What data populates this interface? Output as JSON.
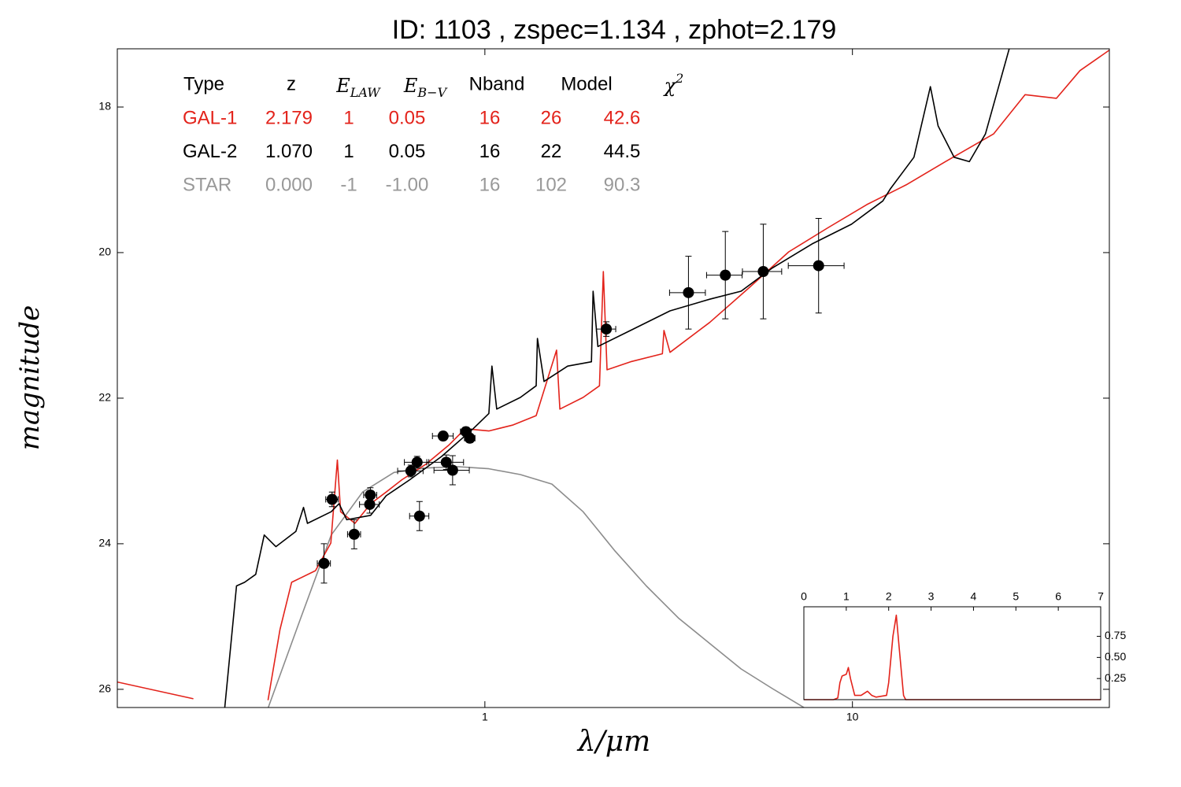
{
  "chart_data": [
    {
      "type": "scatter",
      "title": "ID:  1103  , zspec=1.134 , zphot=2.179",
      "xlabel": "λ/μm",
      "ylabel": "magnitude",
      "xscale": "log",
      "xlim": [
        0.1,
        50
      ],
      "xticks": [
        1,
        10
      ],
      "ylim": [
        26.25,
        17.2
      ],
      "yticks": [
        18,
        20,
        22,
        24,
        26
      ],
      "table": {
        "headers": [
          "Type",
          "z",
          {
            "text": "E",
            "sub": "LAW"
          },
          {
            "text": "E",
            "sub": "B−V"
          },
          "Nband",
          "Model",
          {
            "text": "χ",
            "sup": "2"
          }
        ],
        "rows": [
          {
            "color": "#e3231b",
            "cells": [
              "GAL-1",
              "2.179",
              "1",
              "0.05",
              "16",
              "26",
              "42.6"
            ]
          },
          {
            "color": "#000000",
            "cells": [
              "GAL-2",
              "1.070",
              "1",
              "0.05",
              "16",
              "22",
              "44.5"
            ]
          },
          {
            "color": "#999999",
            "cells": [
              "STAR",
              "0.000",
              "-1",
              "-1.00",
              "16",
              "102",
              "90.3"
            ]
          }
        ]
      },
      "lines": [
        {
          "color": "#8c8c8c",
          "x": [
            0.257,
            0.313,
            0.382,
            0.465,
            0.566,
            0.69,
            0.841,
            1.025,
            1.249,
            1.522,
            1.85,
            2.26,
            2.75,
            3.36,
            4.09,
            4.98,
            6.06,
            7.38
          ],
          "values": [
            26.26,
            25.07,
            23.88,
            23.29,
            23.02,
            22.96,
            22.94,
            22.97,
            23.05,
            23.18,
            23.56,
            24.1,
            24.58,
            25.02,
            25.37,
            25.72,
            25.99,
            26.25
          ]
        },
        {
          "color": "#e3231b",
          "x": [
            0.1,
            0.161,
            0.2,
            0.257,
            0.277,
            0.298,
            0.346,
            0.381,
            0.397,
            0.405,
            0.443,
            0.489,
            0.539,
            0.595,
            0.69,
            0.8,
            0.884,
            1.025,
            1.189,
            1.379,
            1.567,
            1.6,
            1.85,
            2.05,
            2.1,
            2.15,
            2.49,
            3.04,
            3.07,
            3.19,
            4.09,
            5.24,
            6.71,
            8.57,
            10.95,
            14.0,
            17.9,
            24.2,
            29.5,
            35.9,
            41.6,
            50.6
          ],
          "values": [
            25.9,
            26.13,
            null,
            26.15,
            25.18,
            24.53,
            24.37,
            23.99,
            22.85,
            23.56,
            23.72,
            23.45,
            23.29,
            23.12,
            22.91,
            22.64,
            22.42,
            22.45,
            22.37,
            22.24,
            21.34,
            22.15,
            21.99,
            21.83,
            20.26,
            21.61,
            21.5,
            21.39,
            21.07,
            21.37,
            20.96,
            20.48,
            19.99,
            19.66,
            19.34,
            19.07,
            18.75,
            18.37,
            17.83,
            17.88,
            17.5,
            17.2
          ]
        },
        {
          "color": "#000000",
          "x": [
            0.196,
            0.211,
            0.222,
            0.238,
            0.251,
            0.27,
            0.306,
            0.321,
            0.329,
            0.382,
            0.401,
            0.421,
            0.489,
            0.539,
            0.625,
            0.763,
            0.929,
            1.025,
            1.045,
            1.077,
            1.249,
            1.379,
            1.39,
            1.449,
            1.68,
            1.95,
            1.97,
            2.03,
            2.49,
            3.19,
            4.09,
            4.98,
            6.06,
            7.77,
            9.94,
            12.1,
            12.7,
            14.7,
            16.3,
            17.1,
            18.9,
            20.8,
            23.0,
            26.7
          ],
          "values": [
            26.26,
            24.58,
            24.53,
            24.42,
            23.88,
            24.04,
            23.83,
            23.5,
            23.72,
            23.56,
            23.45,
            23.67,
            23.61,
            23.34,
            23.12,
            22.8,
            22.42,
            22.21,
            21.56,
            22.15,
            21.99,
            21.83,
            21.18,
            21.77,
            21.56,
            21.5,
            20.53,
            21.29,
            21.07,
            20.8,
            20.64,
            20.53,
            20.21,
            19.88,
            19.61,
            19.29,
            19.12,
            18.69,
            17.72,
            18.26,
            18.69,
            18.75,
            18.37,
            17.2
          ]
        }
      ],
      "points": {
        "color": "#000000",
        "x": [
          0.365,
          0.384,
          0.441,
          0.486,
          0.488,
          0.629,
          0.654,
          0.664,
          0.77,
          0.785,
          0.817,
          0.888,
          0.91,
          2.14,
          3.58,
          4.51,
          5.72,
          8.09
        ],
        "values": [
          24.27,
          23.39,
          23.87,
          23.46,
          23.33,
          23.0,
          22.88,
          23.62,
          22.52,
          22.88,
          22.99,
          22.46,
          22.55,
          21.05,
          20.55,
          20.31,
          20.26,
          20.18
        ],
        "xerr": [
          0.015,
          0.015,
          0.018,
          0.03,
          0.02,
          0.05,
          0.05,
          0.04,
          0.05,
          0.09,
          0.09,
          0.03,
          0.03,
          0.13,
          0.4,
          0.5,
          0.7,
          1.4
        ],
        "yerr": [
          0.27,
          0.1,
          0.2,
          0.12,
          0.1,
          0.08,
          0.08,
          0.2,
          0.06,
          0.1,
          0.2,
          0.06,
          0.06,
          0.1,
          0.5,
          0.6,
          0.65,
          0.65
        ]
      }
    },
    {
      "type": "line",
      "xlim": [
        0,
        7
      ],
      "xticks": [
        0,
        1,
        2,
        3,
        4,
        5,
        6,
        7
      ],
      "ylim": [
        0,
        1.1
      ],
      "yticks": [
        {
          "value": 0.25,
          "label": "0.25"
        },
        {
          "value": 0.5,
          "label": "0.50"
        },
        {
          "value": 0.75,
          "label": "0.75"
        }
      ],
      "color": "#e3231b",
      "x": [
        0,
        0.7,
        0.8,
        0.85,
        0.9,
        1.0,
        1.05,
        1.1,
        1.2,
        1.35,
        1.5,
        1.6,
        1.7,
        1.95,
        2.0,
        2.1,
        2.18,
        2.25,
        2.35,
        2.4,
        7
      ],
      "values": [
        0,
        0,
        0.02,
        0.2,
        0.28,
        0.3,
        0.38,
        0.25,
        0.05,
        0.05,
        0.1,
        0.05,
        0.03,
        0.05,
        0.2,
        0.75,
        1.0,
        0.6,
        0.05,
        0,
        0
      ]
    }
  ]
}
